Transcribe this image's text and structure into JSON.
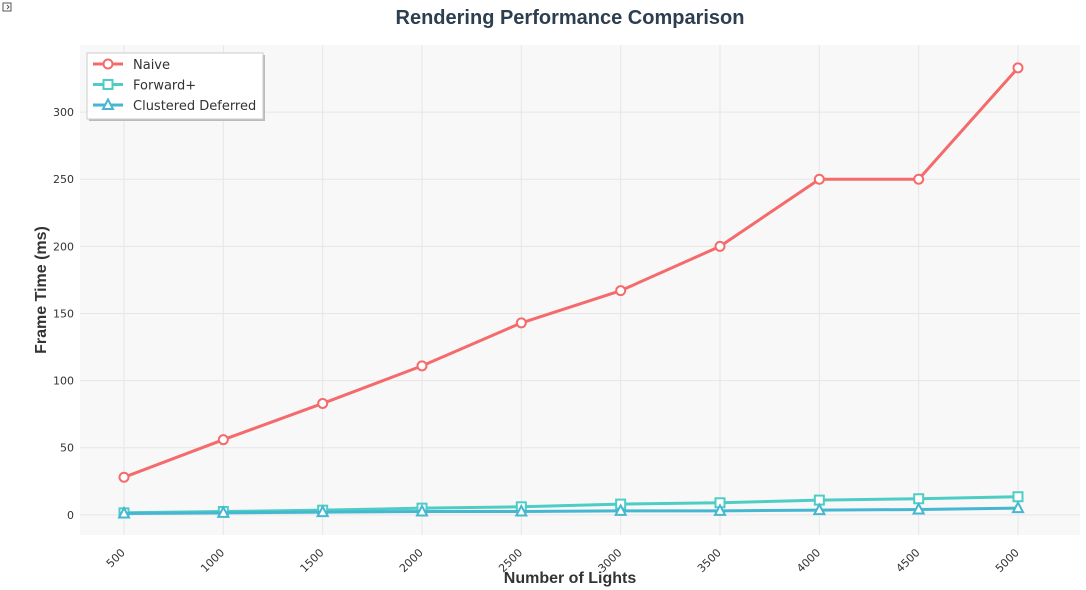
{
  "toolbar": {
    "icon": "expand-icon"
  },
  "chart_data": {
    "type": "line",
    "title": "Rendering Performance Comparison",
    "xlabel": "Number of Lights",
    "ylabel": "Frame Time (ms)",
    "x": [
      500,
      1000,
      1500,
      2000,
      2500,
      3000,
      3500,
      4000,
      4500,
      5000
    ],
    "x_tick_labels": [
      "500",
      "1000",
      "1500",
      "2000",
      "2500",
      "3000",
      "3500",
      "4000",
      "4500",
      "5000"
    ],
    "y_ticks": [
      0,
      50,
      100,
      150,
      200,
      250,
      300
    ],
    "ylim": [
      -15,
      350
    ],
    "grid": true,
    "legend_position": "top-left",
    "series": [
      {
        "name": "Naive",
        "color": "#f56b6b",
        "marker": "circle",
        "values": [
          28,
          56,
          83,
          111,
          143,
          167,
          200,
          250,
          250,
          333
        ]
      },
      {
        "name": "Forward+",
        "color": "#4ecdc4",
        "marker": "square",
        "values": [
          1.5,
          2.5,
          3.5,
          5,
          6,
          8,
          9,
          11,
          12,
          13.5
        ]
      },
      {
        "name": "Clustered Deferred",
        "color": "#45b7d1",
        "marker": "triangle",
        "values": [
          1,
          1.5,
          2,
          2.5,
          2.5,
          3,
          3,
          3.5,
          4,
          5
        ]
      }
    ]
  }
}
